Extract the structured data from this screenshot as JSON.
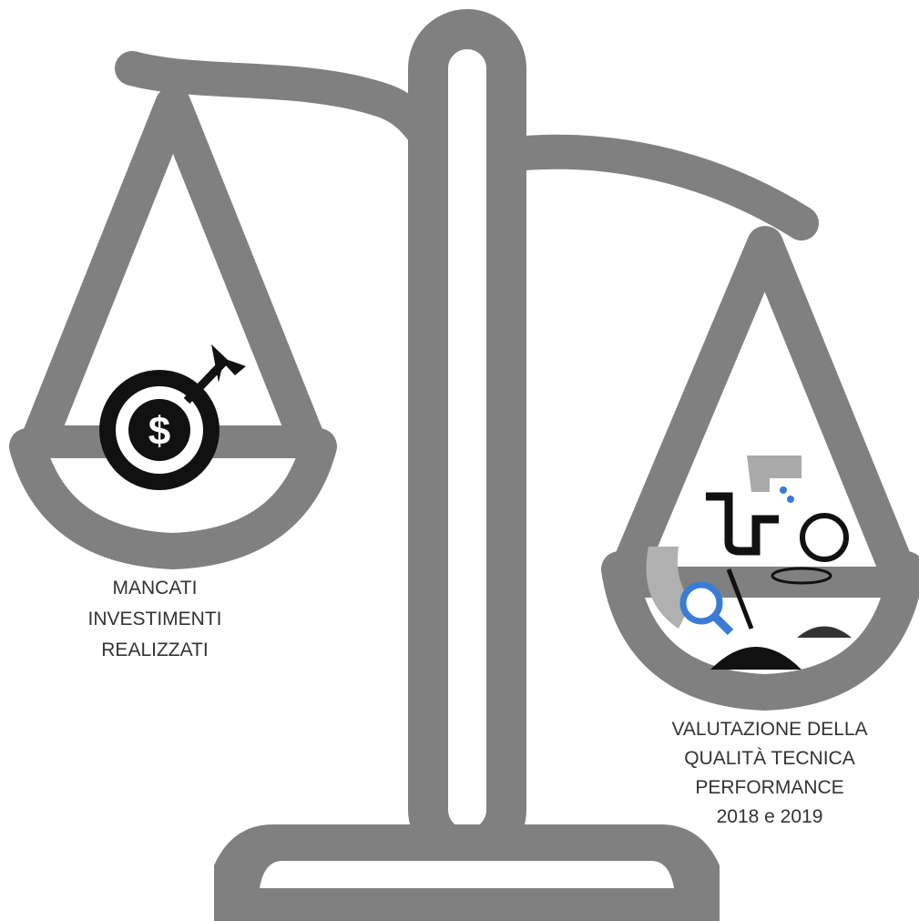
{
  "left_label": [
    "MANCATI",
    "INVESTIMENTI",
    "REALIZZATI"
  ],
  "right_label": [
    "VALUTAZIONE DELLA",
    "QUALITÀ TECNICA",
    "PERFORMANCE",
    "2018 e 2019"
  ]
}
